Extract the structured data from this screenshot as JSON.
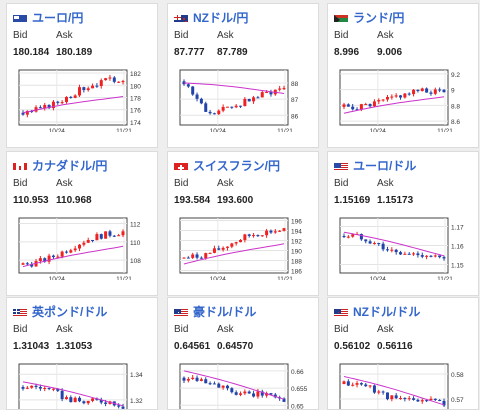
{
  "labels": {
    "bid": "Bid",
    "ask": "Ask"
  },
  "colors": {
    "pair_link": "#3366cc",
    "up_candle": "#ee2222",
    "down_candle": "#2244aa",
    "moving_average": "#cc33cc",
    "chart_frame": "#444444"
  },
  "cards": [
    {
      "pair": "ユーロ/円",
      "flag": "eu-flag",
      "bid": "180.184",
      "ask": "180.189",
      "chart_data": {
        "type": "line",
        "x_labels": [
          "10/24",
          "11/21"
        ],
        "y_ticks": [
          "182",
          "180",
          "178",
          "176",
          "174"
        ],
        "ylim": [
          173.5,
          182.5
        ],
        "start": 175.5,
        "end": 181.5,
        "ma_start": 175.5,
        "ma_end": 178.3,
        "trend": "up"
      }
    },
    {
      "pair": "NZドル/円",
      "flag": "nz-flag",
      "bid": "87.777",
      "ask": "87.789",
      "chart_data": {
        "type": "line",
        "x_labels": [
          "10/24",
          "11/21"
        ],
        "y_ticks": [
          "88",
          "87",
          "86"
        ],
        "ylim": [
          85.4,
          88.8
        ],
        "start": 88.1,
        "end": 87.8,
        "ma_start": 88.0,
        "ma_end": 87.4,
        "trend": "dip"
      }
    },
    {
      "pair": "ランド/円",
      "flag": "za-flag",
      "bid": "8.996",
      "ask": "9.006",
      "chart_data": {
        "type": "line",
        "x_labels": [
          "10/24",
          "11/21"
        ],
        "y_ticks": [
          "9.2",
          "9",
          "8.8",
          "8.6"
        ],
        "ylim": [
          8.55,
          9.25
        ],
        "start": 8.78,
        "end": 9.0,
        "ma_start": 8.7,
        "ma_end": 8.92,
        "trend": "up"
      }
    },
    {
      "pair": "カナダドル/円",
      "flag": "ca-flag",
      "bid": "110.953",
      "ask": "110.968",
      "chart_data": {
        "type": "line",
        "x_labels": [
          "10/24",
          "11/21"
        ],
        "y_ticks": [
          "112",
          "110",
          "108"
        ],
        "ylim": [
          106.6,
          112.6
        ],
        "start": 107.5,
        "end": 111.3,
        "ma_start": 107.3,
        "ma_end": 109.6,
        "trend": "up"
      }
    },
    {
      "pair": "スイスフラン/円",
      "flag": "ch-flag",
      "bid": "193.584",
      "ask": "193.600",
      "chart_data": {
        "type": "line",
        "x_labels": [
          "10/24",
          "11/21"
        ],
        "y_ticks": [
          "196",
          "194",
          "192",
          "190",
          "188",
          "186"
        ],
        "ylim": [
          185.5,
          196.5
        ],
        "start": 188.5,
        "end": 194.5,
        "ma_start": 187.3,
        "ma_end": 191.5,
        "trend": "up"
      }
    },
    {
      "pair": "ユーロ/ドル",
      "flag": "eu-us-flag",
      "bid": "1.15169",
      "ask": "1.15173",
      "chart_data": {
        "type": "line",
        "x_labels": [
          "10/24",
          "11/21"
        ],
        "y_ticks": [
          "1.17",
          "1.16",
          "1.15"
        ],
        "ylim": [
          1.1455,
          1.1745
        ],
        "start": 1.165,
        "end": 1.151,
        "ma_start": 1.167,
        "ma_end": 1.155,
        "trend": "down"
      }
    },
    {
      "pair": "英ポンド/ドル",
      "flag": "gb-us-flag",
      "bid": "1.31043",
      "ask": "1.31053",
      "chart_data": {
        "type": "line",
        "x_labels": [],
        "y_ticks": [
          "1.34",
          "1.32"
        ],
        "ylim": [
          1.305,
          1.348
        ],
        "start": 1.33,
        "end": 1.314,
        "ma_start": 1.334,
        "ma_end": 1.316,
        "trend": "down"
      }
    },
    {
      "pair": "豪ドル/ドル",
      "flag": "au-us-flag",
      "bid": "0.64561",
      "ask": "0.64570",
      "chart_data": {
        "type": "line",
        "x_labels": [],
        "y_ticks": [
          "0.66",
          "0.655",
          "0.65"
        ],
        "ylim": [
          0.646,
          0.662
        ],
        "start": 0.658,
        "end": 0.651,
        "ma_start": 0.66,
        "ma_end": 0.652,
        "trend": "down"
      }
    },
    {
      "pair": "NZドル/ドル",
      "flag": "nz-us-flag",
      "bid": "0.56102",
      "ask": "0.56116",
      "chart_data": {
        "type": "line",
        "x_labels": [],
        "y_ticks": [
          "0.58",
          "0.57"
        ],
        "ylim": [
          0.562,
          0.584
        ],
        "start": 0.576,
        "end": 0.567,
        "ma_start": 0.579,
        "ma_end": 0.568,
        "trend": "down"
      }
    }
  ]
}
